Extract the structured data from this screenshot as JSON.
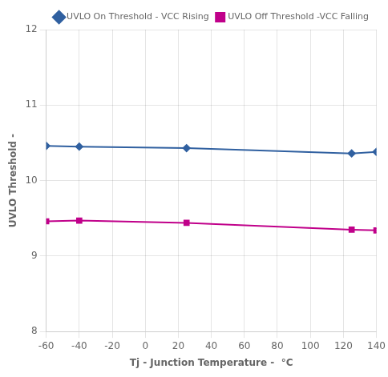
{
  "chart_data": {
    "type": "line",
    "xlabel": "Tj - Junction Temperature -  °C",
    "ylabel": "UVLO Threshold -",
    "x": [
      -60,
      -40,
      25,
      125,
      140
    ],
    "series": [
      {
        "name": "UVLO On Threshold - VCC Rising",
        "color": "#3060a0",
        "marker": "diamond",
        "values": [
          10.46,
          10.45,
          10.43,
          10.36,
          10.38
        ]
      },
      {
        "name": "UVLO Off Threshold -VCC Falling",
        "color": "#c0008a",
        "marker": "square",
        "values": [
          9.46,
          9.47,
          9.44,
          9.35,
          9.34
        ]
      }
    ],
    "xlim": [
      -60,
      140
    ],
    "ylim": [
      8,
      12
    ],
    "xticks": [
      -60,
      -40,
      -20,
      0,
      20,
      40,
      60,
      80,
      100,
      120,
      140
    ],
    "yticks": [
      8,
      9,
      10,
      11,
      12
    ],
    "grid": true,
    "legend": "upper right"
  }
}
